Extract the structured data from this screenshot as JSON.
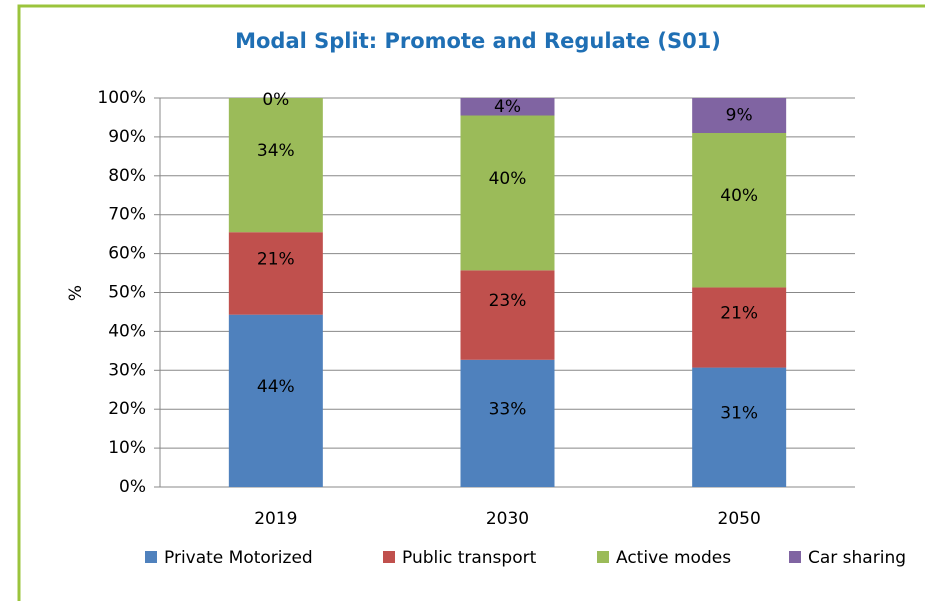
{
  "chart_data": {
    "type": "stacked_bar",
    "title": "Modal Split: Promote and Regulate (S01)",
    "y_label": "%",
    "categories": [
      "2019",
      "2030",
      "2050"
    ],
    "series": [
      {
        "name": "Private Motorized",
        "color": "#4f81bd",
        "values": [
          44.3,
          32.7,
          30.7
        ],
        "value_labels": [
          "44%",
          "33%",
          "31%"
        ]
      },
      {
        "name": "Public transport",
        "color": "#c0504d",
        "values": [
          21.2,
          23.0,
          20.6
        ],
        "value_labels": [
          "21%",
          "23%",
          "21%"
        ]
      },
      {
        "name": "Active modes",
        "color": "#9bbb59",
        "values": [
          34.5,
          39.8,
          39.7
        ],
        "value_labels": [
          "34%",
          "40%",
          "40%"
        ]
      },
      {
        "name": "Car sharing",
        "color": "#8064a2",
        "values": [
          0,
          4.5,
          9.0
        ],
        "value_labels": [
          "0%",
          "4%",
          "9%"
        ]
      }
    ],
    "ylim": [
      0,
      100
    ],
    "yticks": [
      {
        "value": 0,
        "label": "0%"
      },
      {
        "value": 10,
        "label": "10%"
      },
      {
        "value": 20,
        "label": "20%"
      },
      {
        "value": 30,
        "label": "30%"
      },
      {
        "value": 40,
        "label": "40%"
      },
      {
        "value": 50,
        "label": "50%"
      },
      {
        "value": 60,
        "label": "60%"
      },
      {
        "value": 70,
        "label": "70%"
      },
      {
        "value": 80,
        "label": "80%"
      },
      {
        "value": 90,
        "label": "90%"
      },
      {
        "value": 100,
        "label": "100%"
      }
    ],
    "grid": true,
    "legend": "bottom"
  }
}
